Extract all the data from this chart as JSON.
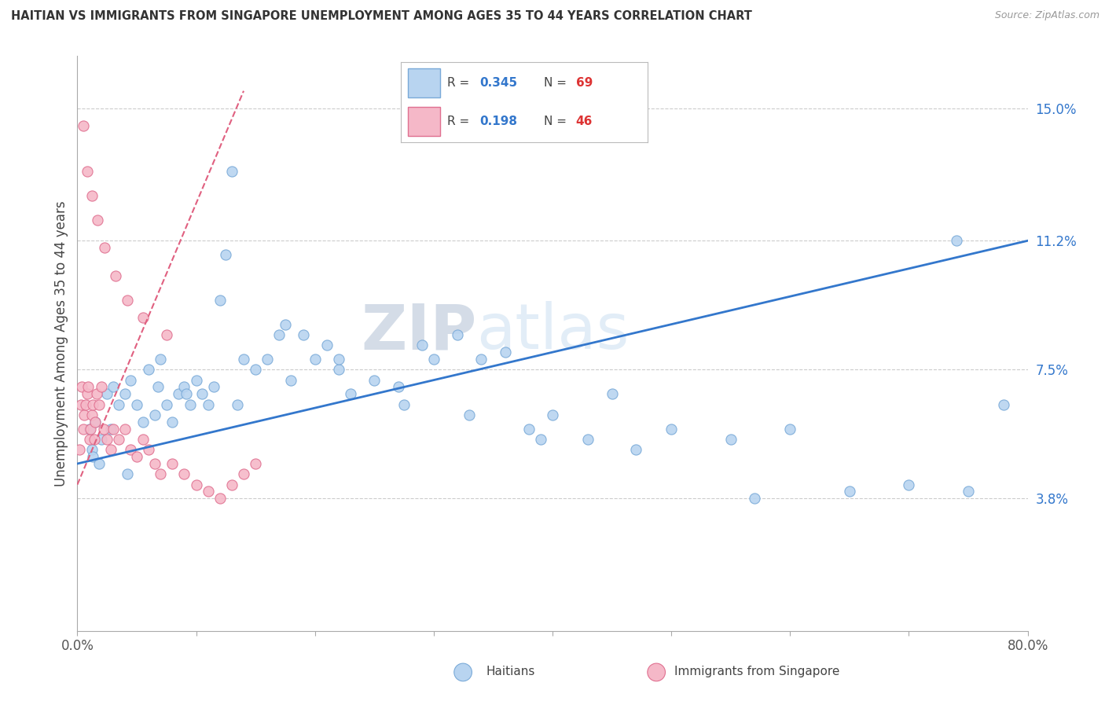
{
  "title": "HAITIAN VS IMMIGRANTS FROM SINGAPORE UNEMPLOYMENT AMONG AGES 35 TO 44 YEARS CORRELATION CHART",
  "source": "Source: ZipAtlas.com",
  "ylabel": "Unemployment Among Ages 35 to 44 years",
  "xlim": [
    0.0,
    80.0
  ],
  "ylim": [
    0.0,
    16.5
  ],
  "yticks": [
    3.8,
    7.5,
    11.2,
    15.0
  ],
  "ytick_labels": [
    "3.8%",
    "7.5%",
    "11.2%",
    "15.0%"
  ],
  "legend_r1": "0.345",
  "legend_n1": "69",
  "legend_r2": "0.198",
  "legend_n2": "46",
  "blue_color": "#b8d4f0",
  "blue_edge": "#7aaad8",
  "pink_color": "#f5b8c8",
  "pink_edge": "#e07090",
  "trend_blue": "#3377cc",
  "trend_pink": "#e06080",
  "watermark_zip": "ZIP",
  "watermark_atlas": "atlas",
  "haitians_x": [
    1.0,
    1.2,
    1.5,
    2.0,
    2.5,
    3.0,
    3.5,
    4.0,
    4.5,
    5.0,
    5.5,
    6.0,
    6.5,
    7.0,
    7.5,
    8.0,
    8.5,
    9.0,
    9.5,
    10.0,
    10.5,
    11.0,
    11.5,
    12.0,
    12.5,
    13.0,
    14.0,
    15.0,
    16.0,
    17.0,
    18.0,
    19.0,
    20.0,
    21.0,
    22.0,
    23.0,
    25.0,
    27.0,
    29.0,
    30.0,
    32.0,
    34.0,
    36.0,
    38.0,
    40.0,
    43.0,
    47.0,
    50.0,
    55.0,
    60.0,
    65.0,
    70.0,
    75.0,
    78.0,
    1.3,
    1.8,
    2.8,
    4.2,
    6.8,
    9.2,
    13.5,
    17.5,
    22.0,
    27.5,
    33.0,
    39.0,
    45.0,
    57.0,
    74.0
  ],
  "haitians_y": [
    5.8,
    5.2,
    6.0,
    5.5,
    6.8,
    7.0,
    6.5,
    6.8,
    7.2,
    6.5,
    6.0,
    7.5,
    6.2,
    7.8,
    6.5,
    6.0,
    6.8,
    7.0,
    6.5,
    7.2,
    6.8,
    6.5,
    7.0,
    9.5,
    10.8,
    13.2,
    7.8,
    7.5,
    7.8,
    8.5,
    7.2,
    8.5,
    7.8,
    8.2,
    7.5,
    6.8,
    7.2,
    7.0,
    8.2,
    7.8,
    8.5,
    7.8,
    8.0,
    5.8,
    6.2,
    5.5,
    5.2,
    5.8,
    5.5,
    5.8,
    4.0,
    4.2,
    4.0,
    6.5,
    5.0,
    4.8,
    5.8,
    4.5,
    7.0,
    6.8,
    6.5,
    8.8,
    7.8,
    6.5,
    6.2,
    5.5,
    6.8,
    3.8,
    11.2
  ],
  "singapore_x": [
    0.2,
    0.3,
    0.4,
    0.5,
    0.6,
    0.7,
    0.8,
    0.9,
    1.0,
    1.1,
    1.2,
    1.3,
    1.4,
    1.5,
    1.6,
    1.8,
    2.0,
    2.2,
    2.5,
    2.8,
    3.0,
    3.5,
    4.0,
    4.5,
    5.0,
    5.5,
    6.0,
    6.5,
    7.0,
    8.0,
    9.0,
    10.0,
    11.0,
    12.0,
    13.0,
    14.0,
    15.0,
    0.5,
    0.8,
    1.2,
    1.7,
    2.3,
    3.2,
    4.2,
    5.5,
    7.5
  ],
  "singapore_y": [
    5.2,
    6.5,
    7.0,
    5.8,
    6.2,
    6.5,
    6.8,
    7.0,
    5.5,
    5.8,
    6.2,
    6.5,
    5.5,
    6.0,
    6.8,
    6.5,
    7.0,
    5.8,
    5.5,
    5.2,
    5.8,
    5.5,
    5.8,
    5.2,
    5.0,
    5.5,
    5.2,
    4.8,
    4.5,
    4.8,
    4.5,
    4.2,
    4.0,
    3.8,
    4.2,
    4.5,
    4.8,
    14.5,
    13.2,
    12.5,
    11.8,
    11.0,
    10.2,
    9.5,
    9.0,
    8.5
  ],
  "blue_trend_x0": 0.0,
  "blue_trend_y0": 4.8,
  "blue_trend_x1": 80.0,
  "blue_trend_y1": 11.2,
  "pink_trend_x0": 0.0,
  "pink_trend_y0": 4.2,
  "pink_trend_x1": 14.0,
  "pink_trend_y1": 15.5
}
